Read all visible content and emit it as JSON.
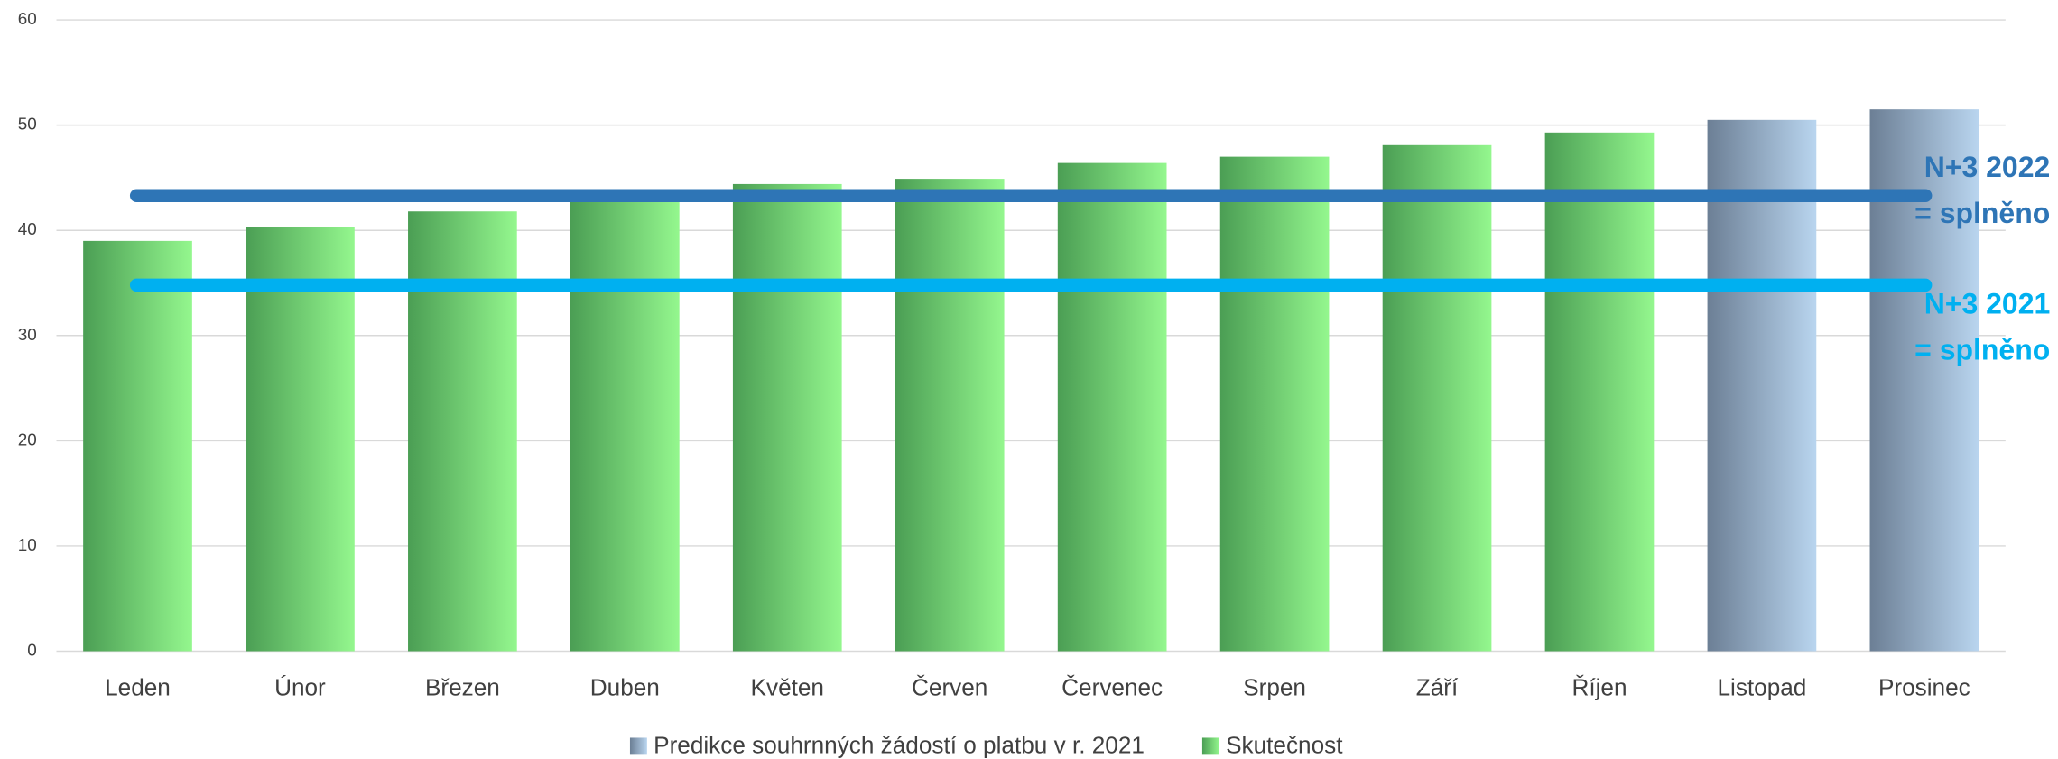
{
  "chart_data": {
    "type": "bar",
    "categories": [
      "Leden",
      "Únor",
      "Březen",
      "Duben",
      "Květen",
      "Červen",
      "Červenec",
      "Srpen",
      "Září",
      "Říjen",
      "Listopad",
      "Prosinec"
    ],
    "series": [
      {
        "name": "Predikce souhrnných žádostí o platbu v r. 2021",
        "gradient": [
          "#6c7f95",
          "#b9d5ef"
        ],
        "values": [
          null,
          null,
          null,
          null,
          null,
          null,
          null,
          null,
          null,
          null,
          50.5,
          51.5
        ]
      },
      {
        "name": "Skutečnost",
        "gradient": [
          "#4b9e54",
          "#94f78e"
        ],
        "values": [
          39.0,
          40.3,
          41.8,
          43.3,
          44.4,
          44.9,
          46.4,
          47.0,
          48.1,
          49.3,
          null,
          null
        ]
      }
    ],
    "reference_lines": [
      {
        "value": 43.3,
        "color": "#2e75b6",
        "label": [
          "N+3 2022",
          "= splněno"
        ]
      },
      {
        "value": 34.8,
        "color": "#00b0f0",
        "label": [
          "N+3 2021",
          "= splněno"
        ]
      }
    ],
    "ylim": [
      0,
      60
    ],
    "yticks": [
      0,
      10,
      20,
      30,
      40,
      50,
      60
    ],
    "grid": true
  }
}
